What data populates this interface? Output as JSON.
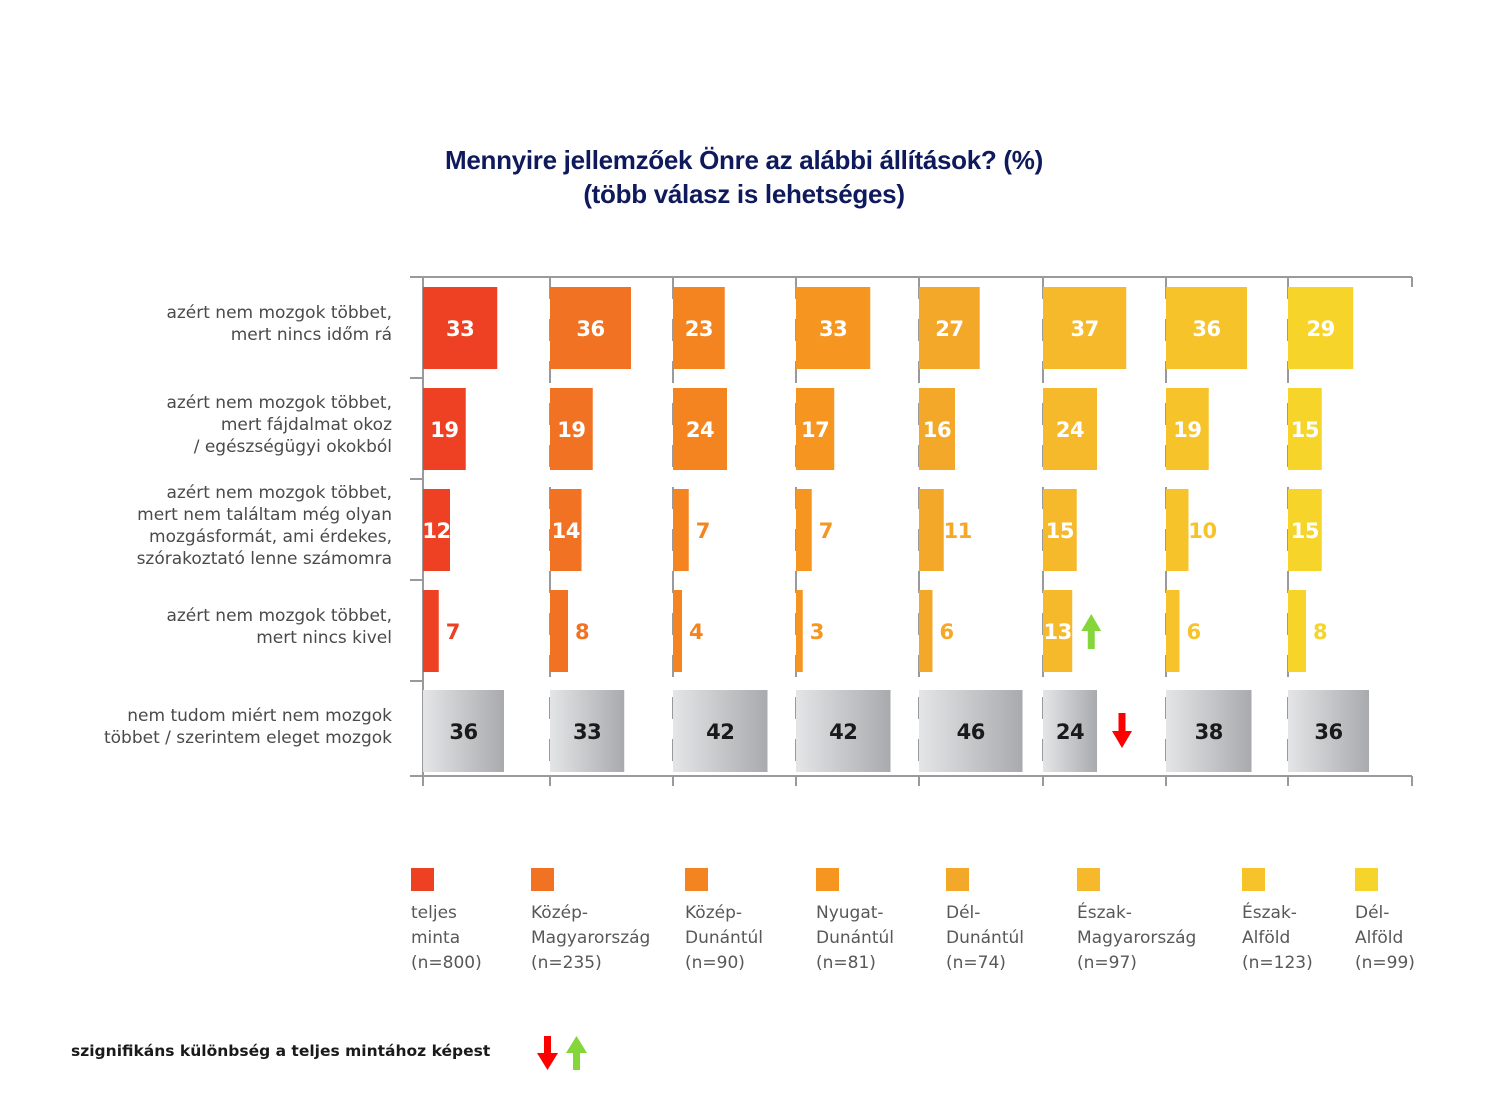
{
  "chart_data": {
    "type": "bar",
    "orientation": "horizontal",
    "layout": "small-multiples (one panel per region)",
    "title": "Mennyire jellemzőek Önre az alábbi állítások? (%)",
    "subtitle": "(több válasz is lehetséges)",
    "xlabel": "",
    "ylabel": "",
    "unit": "%",
    "xlim": [
      0,
      100
    ],
    "grid": false,
    "legend_position": "bottom",
    "categories": [
      [
        "azért nem mozgok többet,",
        "mert nincs időm rá"
      ],
      [
        "azért nem mozgok többet,",
        "mert fájdalmat okoz",
        "/ egészségügyi okokból"
      ],
      [
        "azért nem mozgok többet,",
        "mert nem találtam még olyan",
        "mozgásformát, ami érdekes,",
        "szórakoztató lenne számomra"
      ],
      [
        "azért nem mozgok többet,",
        "mert nincs kivel"
      ],
      [
        "nem tudom miért nem mozgok",
        "többet / szerintem eleget mozgok"
      ]
    ],
    "neutral_category_index": 4,
    "neutral_color": "#c9cacc",
    "series": [
      {
        "name": [
          "teljes",
          "minta",
          "(n=800)"
        ],
        "color": "#ee4023",
        "values": [
          33,
          19,
          12,
          7,
          36
        ]
      },
      {
        "name": [
          "Közép-",
          "Magyarország",
          "(n=235)"
        ],
        "color": "#f07222",
        "values": [
          36,
          19,
          14,
          8,
          33
        ]
      },
      {
        "name": [
          "Közép-",
          "Dunántúl",
          "(n=90)"
        ],
        "color": "#f38420",
        "values": [
          23,
          24,
          7,
          4,
          42
        ]
      },
      {
        "name": [
          "Nyugat-",
          "Dunántúl",
          "(n=81)"
        ],
        "color": "#f6951f",
        "values": [
          33,
          17,
          7,
          3,
          42
        ]
      },
      {
        "name": [
          "Dél-",
          "Dunántúl",
          "(n=74)"
        ],
        "color": "#f4a82a",
        "values": [
          27,
          16,
          11,
          6,
          46
        ]
      },
      {
        "name": [
          "Észak-",
          "Magyarország",
          "(n=97)"
        ],
        "color": "#f6b92b",
        "values": [
          37,
          24,
          15,
          13,
          24
        ]
      },
      {
        "name": [
          "Észak-",
          "Alföld",
          "(n=123)"
        ],
        "color": "#f6c42a",
        "values": [
          36,
          19,
          10,
          6,
          38
        ]
      },
      {
        "name": [
          "Dél-",
          "Alföld",
          "(n=99)"
        ],
        "color": "#f6d42a",
        "values": [
          29,
          15,
          15,
          8,
          36
        ]
      }
    ],
    "significance_markers": [
      {
        "series_index": 5,
        "category_index": 3,
        "direction": "up",
        "color": "#85d63a"
      },
      {
        "series_index": 5,
        "category_index": 4,
        "direction": "down",
        "color": "#ff0000"
      }
    ]
  },
  "footnote": {
    "text": "szignifikáns különbség a teljes mintához képest",
    "down_color": "#ff0000",
    "up_color": "#85d63a"
  }
}
